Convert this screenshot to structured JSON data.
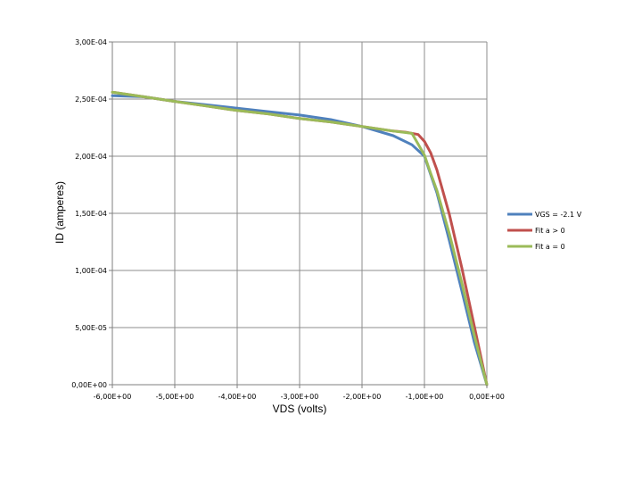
{
  "chart_data": {
    "type": "line",
    "xlabel": "VDS (volts)",
    "ylabel": "ID (amperes)",
    "xlim": [
      -6,
      0
    ],
    "ylim": [
      0,
      0.0003
    ],
    "x_ticks": [
      -6,
      -5,
      -4,
      -3,
      -2,
      -1,
      0
    ],
    "x_tick_labels": [
      "-6,00E+00",
      "-5,00E+00",
      "-4,00E+00",
      "-3,00E+00",
      "-2,00E+00",
      "-1,00E+00",
      "0,00E+00"
    ],
    "y_ticks": [
      0,
      5e-05,
      0.0001,
      0.00015,
      0.0002,
      0.00025,
      0.0003
    ],
    "y_tick_labels": [
      "0,00E+00",
      "5,00E-05",
      "1,00E-04",
      "1,50E-04",
      "2,00E-04",
      "2,50E-04",
      "3,00E-04"
    ],
    "grid": true,
    "legend_position": "right",
    "series": [
      {
        "name": "VGS = -2.1 V",
        "color": "#4f81bd",
        "x": [
          -6.0,
          -5.5,
          -5.0,
          -4.5,
          -4.0,
          -3.5,
          -3.0,
          -2.5,
          -2.0,
          -1.5,
          -1.2,
          -1.0,
          -0.8,
          -0.6,
          -0.4,
          -0.2,
          0.0
        ],
        "y": [
          0.000253,
          0.000252,
          0.000248,
          0.000245,
          0.000242,
          0.000239,
          0.000236,
          0.000232,
          0.000226,
          0.000218,
          0.00021,
          0.0002,
          0.000168,
          0.000126,
          8.2e-05,
          3.7e-05,
          0.0
        ]
      },
      {
        "name": "Fit a > 0",
        "color": "#c0504d",
        "x": [
          -6.0,
          -5.5,
          -5.0,
          -4.5,
          -4.0,
          -3.5,
          -3.0,
          -2.5,
          -2.0,
          -1.5,
          -1.3,
          -1.1,
          -1.0,
          -0.9,
          -0.8,
          -0.6,
          -0.4,
          -0.2,
          0.0
        ],
        "y": [
          0.000256,
          0.000252,
          0.000248,
          0.000244,
          0.00024,
          0.000237,
          0.000233,
          0.00023,
          0.000226,
          0.000222,
          0.000221,
          0.000219,
          0.000213,
          0.000203,
          0.000188,
          0.000149,
          0.000102,
          5.1e-05,
          0.0
        ]
      },
      {
        "name": "Fit a = 0",
        "color": "#9bbb59",
        "x": [
          -6.0,
          -5.5,
          -5.0,
          -4.5,
          -4.0,
          -3.5,
          -3.0,
          -2.5,
          -2.0,
          -1.5,
          -1.2,
          -1.0,
          -0.9,
          -0.8,
          -0.6,
          -0.4,
          -0.2,
          0.0
        ],
        "y": [
          0.000256,
          0.000252,
          0.000248,
          0.000244,
          0.00024,
          0.000237,
          0.000233,
          0.00023,
          0.000226,
          0.000222,
          0.00022,
          0.000201,
          0.000185,
          0.00017,
          0.000132,
          8.9e-05,
          4.3e-05,
          0.0
        ]
      }
    ]
  }
}
